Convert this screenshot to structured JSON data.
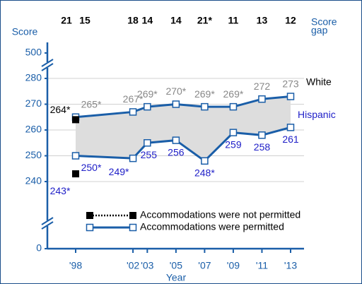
{
  "chart_data": {
    "type": "line",
    "x_axis_label": "Year",
    "y_axis_label": "Score",
    "x": [
      1998,
      2002,
      2003,
      2005,
      2007,
      2009,
      2011,
      2013
    ],
    "xticks": [
      {
        "value": 1998,
        "label": "'98"
      },
      {
        "value": 2002,
        "label": "'02"
      },
      {
        "value": 2003,
        "label": "'03"
      },
      {
        "value": 2005,
        "label": "'05"
      },
      {
        "value": 2007,
        "label": "'07"
      },
      {
        "value": 2009,
        "label": "'09"
      },
      {
        "value": 2011,
        "label": "'11"
      },
      {
        "value": 2013,
        "label": "'13"
      }
    ],
    "ylim": [
      0,
      500
    ],
    "yticks": [
      0,
      240,
      250,
      260,
      270,
      280,
      500
    ],
    "axis_break": true,
    "grid": true,
    "series": [
      {
        "name": "White",
        "color": "#1a5ea8",
        "label_color": "#888888",
        "name_color": "#000000",
        "values": [
          265,
          267,
          269,
          270,
          269,
          269,
          272,
          273
        ],
        "value_labels": [
          "265*",
          "267*",
          "269*",
          "270*",
          "269*",
          "269*",
          "272",
          "273"
        ],
        "not_permitted": {
          "value": 264,
          "label": "264*"
        }
      },
      {
        "name": "Hispanic",
        "color": "#1a5ea8",
        "label_color": "#2020c8",
        "name_color": "#2020c8",
        "values": [
          250,
          249,
          255,
          256,
          248,
          259,
          258,
          261
        ],
        "value_labels": [
          "250*",
          "249*",
          "255",
          "256",
          "248*",
          "259",
          "258",
          "261"
        ],
        "not_permitted": {
          "value": 243,
          "label": "243*"
        }
      }
    ],
    "score_gap": {
      "title": [
        "Score",
        "gap"
      ],
      "values": [
        21,
        15,
        18,
        14,
        14,
        21,
        11,
        13,
        12
      ],
      "value_labels": [
        "21",
        "15",
        "18",
        "14",
        "14",
        "21*",
        "11",
        "13",
        "12"
      ]
    },
    "legend": [
      "Accommodations were not permitted",
      "Accommodations were permitted"
    ],
    "band_color": "#dddddd"
  }
}
